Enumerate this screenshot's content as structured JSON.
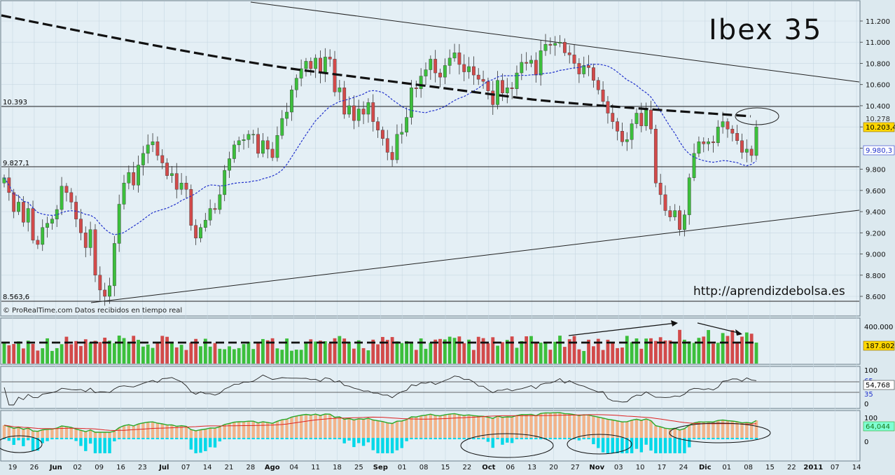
{
  "title_text": "Ibex 35",
  "watermark_url": "http://aprendizdebolsa.es",
  "source_note": "© ProRealTime.com  Datos recibidos en tiempo real",
  "colors": {
    "background": "#dce9ef",
    "up": "#3cbf3c",
    "down": "#d24a4a",
    "ma": "#2233cc",
    "grid": "#c7d8e2"
  },
  "chart_data": [
    {
      "type": "candlestick",
      "name": "price",
      "y_tick_labels": [
        "11.200",
        "11.000",
        "10.800",
        "10.600",
        "10.400",
        "10.200",
        "10.000",
        "9.800",
        "9.600",
        "9.400",
        "9.200",
        "9.000",
        "8.800",
        "8.600"
      ],
      "ylim": [
        8.55,
        11.28
      ],
      "level_labels": [
        "10.393",
        "9.827,1",
        "8.563,6"
      ],
      "price_tags": {
        "last": "10.203,4",
        "ma": "9.980,3",
        "high_box": "10.278"
      },
      "x_labels": [
        "19",
        "26",
        "Jun",
        "02",
        "09",
        "16",
        "23",
        "Jul",
        "07",
        "14",
        "21",
        "28",
        "Ago",
        "04",
        "11",
        "18",
        "25",
        "Sep",
        "01",
        "08",
        "15",
        "22",
        "Oct",
        "06",
        "13",
        "20",
        "27",
        "Nov",
        "03",
        "10",
        "17",
        "24",
        "Dic",
        "01",
        "08",
        "15",
        "22",
        "2011",
        "07",
        "14"
      ],
      "x_label_bold": [
        "Jun",
        "Jul",
        "Ago",
        "Sep",
        "Oct",
        "Nov",
        "Dic",
        "2011"
      ],
      "closes_thousands": [
        9.72,
        9.58,
        9.4,
        9.49,
        9.3,
        9.43,
        9.13,
        9.09,
        9.25,
        9.29,
        9.33,
        9.42,
        9.64,
        9.58,
        9.49,
        9.33,
        9.2,
        9.06,
        9.23,
        8.8,
        8.66,
        8.6,
        8.7,
        9.1,
        9.47,
        9.67,
        9.77,
        9.65,
        9.84,
        9.95,
        10.03,
        10.06,
        9.93,
        9.86,
        9.74,
        9.76,
        9.61,
        9.67,
        9.61,
        9.27,
        9.15,
        9.25,
        9.32,
        9.43,
        9.42,
        9.56,
        9.79,
        9.9,
        10.03,
        10.07,
        10.08,
        10.13,
        10.13,
        9.95,
        10.07,
        9.99,
        9.91,
        10.12,
        10.28,
        10.34,
        10.55,
        10.66,
        10.75,
        10.82,
        10.75,
        10.85,
        10.71,
        10.86,
        10.84,
        10.53,
        10.57,
        10.32,
        10.4,
        10.26,
        10.37,
        10.32,
        10.43,
        10.25,
        10.17,
        10.09,
        9.96,
        9.89,
        10.13,
        10.15,
        10.29,
        10.57,
        10.56,
        10.68,
        10.74,
        10.84,
        10.71,
        10.67,
        10.78,
        10.85,
        10.9,
        10.79,
        10.72,
        10.77,
        10.69,
        10.65,
        10.63,
        10.54,
        10.41,
        10.64,
        10.52,
        10.57,
        10.56,
        10.71,
        10.81,
        10.8,
        10.83,
        10.69,
        10.92,
        10.98,
        10.97,
        10.99,
        11.0,
        10.9,
        10.88,
        10.8,
        10.7,
        10.78,
        10.76,
        10.64,
        10.55,
        10.44,
        10.33,
        10.25,
        10.16,
        10.06,
        10.08,
        10.23,
        10.33,
        10.21,
        10.36,
        10.18,
        9.67,
        9.56,
        9.41,
        9.35,
        9.41,
        9.23,
        9.37,
        9.72,
        9.95,
        10.06,
        10.04,
        10.06,
        10.05,
        10.2,
        10.25,
        10.18,
        10.14,
        10.07,
        9.96,
        9.99,
        9.93,
        10.2
      ],
      "ma_description": "20-period moving average (blue dashed)"
    },
    {
      "type": "bar",
      "name": "volume",
      "y_tick_labels": [
        "400.000"
      ],
      "value_tag": "187.802",
      "note": "alternating green/red volume bars with dashed average line"
    },
    {
      "type": "line",
      "name": "rsi",
      "y_tick_labels": [
        "100",
        "0"
      ],
      "levels": [
        "65",
        "35"
      ],
      "value_tag": "54,768"
    },
    {
      "type": "area",
      "name": "oscillator",
      "y_tick_labels": [
        "100",
        "0"
      ],
      "value_tag": "64,044"
    }
  ]
}
